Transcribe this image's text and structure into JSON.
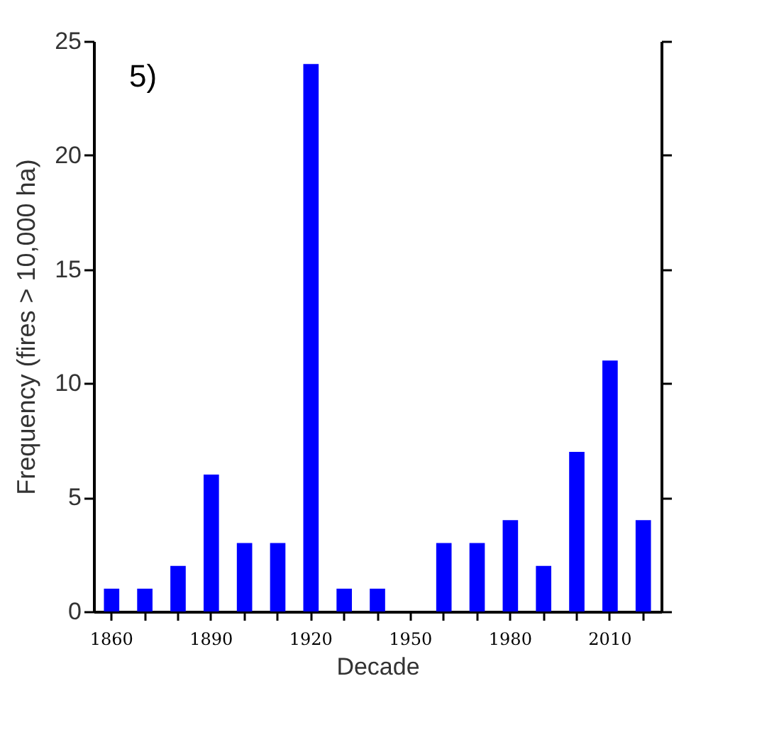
{
  "chart_data": {
    "type": "bar",
    "xlabel": "Decade",
    "ylabel": "Frequency (fires > 10,000 ha)",
    "categories": [
      "1860",
      null,
      null,
      "1890",
      null,
      null,
      "1920",
      null,
      null,
      "1950",
      null,
      null,
      "1980",
      null,
      null,
      "2010",
      null
    ],
    "values": [
      1,
      1,
      2,
      6,
      3,
      3,
      24,
      1,
      1,
      0,
      3,
      3,
      4,
      2,
      7,
      11,
      4
    ],
    "color": "#0000ff",
    "ylim": [
      0,
      25
    ],
    "yticks": [
      0,
      5,
      10,
      15,
      20,
      25
    ],
    "grid": false,
    "annotations": [
      "5)"
    ]
  }
}
